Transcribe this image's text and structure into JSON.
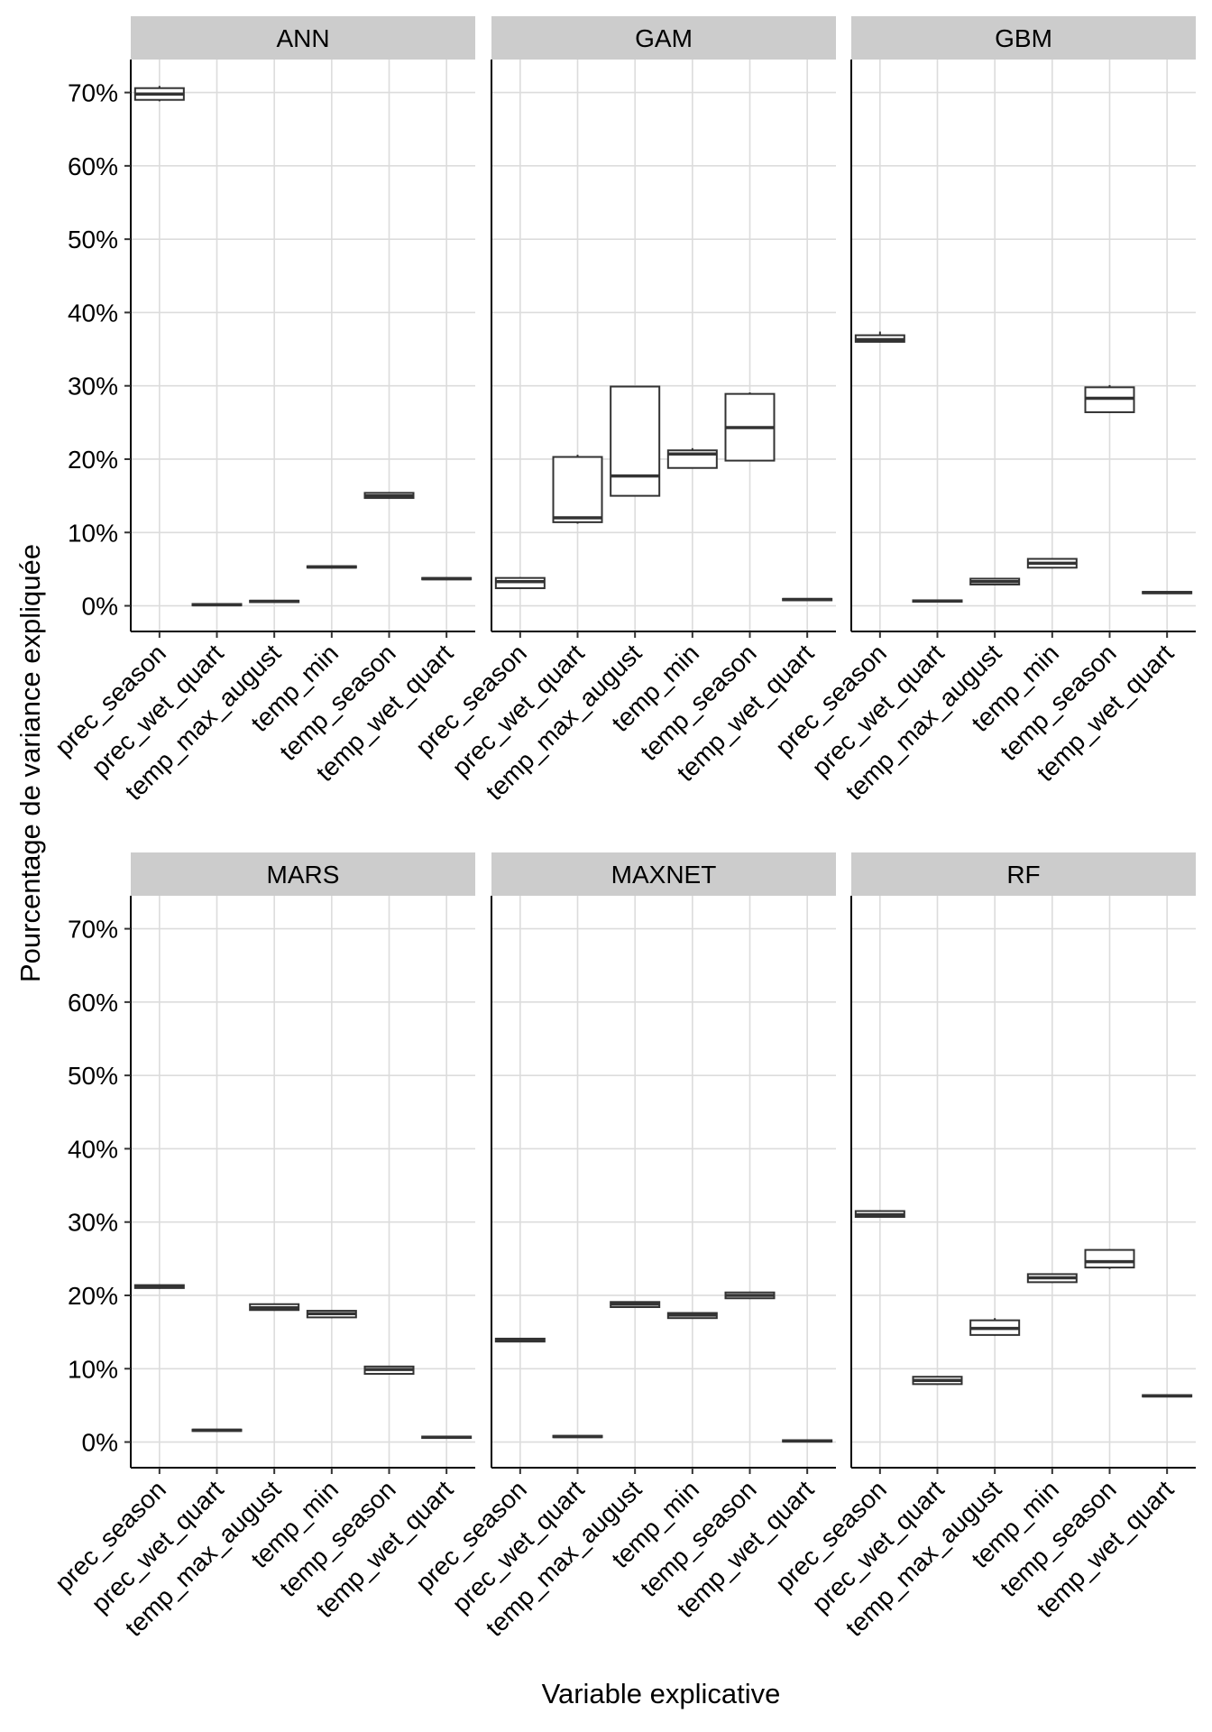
{
  "chart_data": {
    "type": "boxplot",
    "ylabel": "Pourcentage de variance expliquée",
    "xlabel": "Variable explicative",
    "ylim": [
      -3.5,
      74.5
    ],
    "yticks": [
      0,
      10,
      20,
      30,
      40,
      50,
      60,
      70
    ],
    "ytick_labels": [
      "0%",
      "10%",
      "20%",
      "30%",
      "40%",
      "50%",
      "60%",
      "70%"
    ],
    "categories": [
      "prec_season",
      "prec_wet_quart",
      "temp_max_august",
      "temp_min",
      "temp_season",
      "temp_wet_quart"
    ],
    "panels": [
      {
        "title": "ANN",
        "boxes": [
          {
            "min": 68.8,
            "q1": 69.0,
            "median": 69.8,
            "q3": 70.6,
            "max": 70.9
          },
          {
            "min": 0.0,
            "q1": 0.05,
            "median": 0.15,
            "q3": 0.25,
            "max": 0.3
          },
          {
            "min": 0.4,
            "q1": 0.5,
            "median": 0.6,
            "q3": 0.7,
            "max": 0.8
          },
          {
            "min": 5.1,
            "q1": 5.2,
            "median": 5.3,
            "q3": 5.4,
            "max": 5.5
          },
          {
            "min": 14.6,
            "q1": 14.7,
            "median": 15.0,
            "q3": 15.4,
            "max": 15.5
          },
          {
            "min": 3.5,
            "q1": 3.6,
            "median": 3.7,
            "q3": 3.8,
            "max": 3.9
          }
        ]
      },
      {
        "title": "GAM",
        "boxes": [
          {
            "min": 2.3,
            "q1": 2.4,
            "median": 3.3,
            "q3": 3.8,
            "max": 3.9
          },
          {
            "min": 11.2,
            "q1": 11.4,
            "median": 12.0,
            "q3": 20.3,
            "max": 20.6
          },
          {
            "min": 15.0,
            "q1": 15.0,
            "median": 17.7,
            "q3": 29.9,
            "max": 29.9
          },
          {
            "min": 18.8,
            "q1": 18.8,
            "median": 20.7,
            "q3": 21.2,
            "max": 21.5
          },
          {
            "min": 19.7,
            "q1": 19.8,
            "median": 24.3,
            "q3": 28.9,
            "max": 29.1
          },
          {
            "min": 0.7,
            "q1": 0.75,
            "median": 0.85,
            "q3": 0.95,
            "max": 1.0
          }
        ]
      },
      {
        "title": "GBM",
        "boxes": [
          {
            "min": 35.9,
            "q1": 36.0,
            "median": 36.3,
            "q3": 36.9,
            "max": 37.4
          },
          {
            "min": 0.5,
            "q1": 0.55,
            "median": 0.65,
            "q3": 0.75,
            "max": 0.8
          },
          {
            "min": 2.8,
            "q1": 2.9,
            "median": 3.3,
            "q3": 3.7,
            "max": 3.8
          },
          {
            "min": 5.1,
            "q1": 5.2,
            "median": 5.8,
            "q3": 6.4,
            "max": 6.5
          },
          {
            "min": 26.3,
            "q1": 26.4,
            "median": 28.3,
            "q3": 29.8,
            "max": 30.1
          },
          {
            "min": 1.6,
            "q1": 1.7,
            "median": 1.8,
            "q3": 1.9,
            "max": 2.0
          }
        ]
      },
      {
        "title": "MARS",
        "boxes": [
          {
            "min": 20.9,
            "q1": 21.0,
            "median": 21.2,
            "q3": 21.4,
            "max": 21.5
          },
          {
            "min": 1.4,
            "q1": 1.5,
            "median": 1.6,
            "q3": 1.7,
            "max": 1.8
          },
          {
            "min": 17.9,
            "q1": 18.0,
            "median": 18.3,
            "q3": 18.8,
            "max": 18.9
          },
          {
            "min": 16.9,
            "q1": 17.0,
            "median": 17.5,
            "q3": 17.9,
            "max": 18.0
          },
          {
            "min": 9.2,
            "q1": 9.3,
            "median": 9.9,
            "q3": 10.3,
            "max": 10.4
          },
          {
            "min": 0.5,
            "q1": 0.55,
            "median": 0.65,
            "q3": 0.75,
            "max": 0.8
          }
        ]
      },
      {
        "title": "MAXNET",
        "boxes": [
          {
            "min": 13.6,
            "q1": 13.7,
            "median": 13.9,
            "q3": 14.1,
            "max": 14.2
          },
          {
            "min": 0.6,
            "q1": 0.65,
            "median": 0.75,
            "q3": 0.85,
            "max": 0.9
          },
          {
            "min": 18.3,
            "q1": 18.4,
            "median": 18.8,
            "q3": 19.1,
            "max": 19.2
          },
          {
            "min": 16.8,
            "q1": 16.9,
            "median": 17.3,
            "q3": 17.6,
            "max": 17.7
          },
          {
            "min": 19.5,
            "q1": 19.6,
            "median": 20.0,
            "q3": 20.4,
            "max": 20.5
          },
          {
            "min": 0.0,
            "q1": 0.05,
            "median": 0.15,
            "q3": 0.25,
            "max": 0.3
          }
        ]
      },
      {
        "title": "RF",
        "boxes": [
          {
            "min": 30.6,
            "q1": 30.7,
            "median": 31.0,
            "q3": 31.5,
            "max": 31.6
          },
          {
            "min": 7.8,
            "q1": 7.9,
            "median": 8.4,
            "q3": 8.9,
            "max": 9.0
          },
          {
            "min": 14.5,
            "q1": 14.6,
            "median": 15.5,
            "q3": 16.6,
            "max": 16.9
          },
          {
            "min": 21.7,
            "q1": 21.8,
            "median": 22.4,
            "q3": 22.9,
            "max": 23.0
          },
          {
            "min": 23.6,
            "q1": 23.8,
            "median": 24.6,
            "q3": 26.2,
            "max": 26.3
          },
          {
            "min": 6.1,
            "q1": 6.2,
            "median": 6.3,
            "q3": 6.4,
            "max": 6.5
          }
        ]
      }
    ]
  }
}
